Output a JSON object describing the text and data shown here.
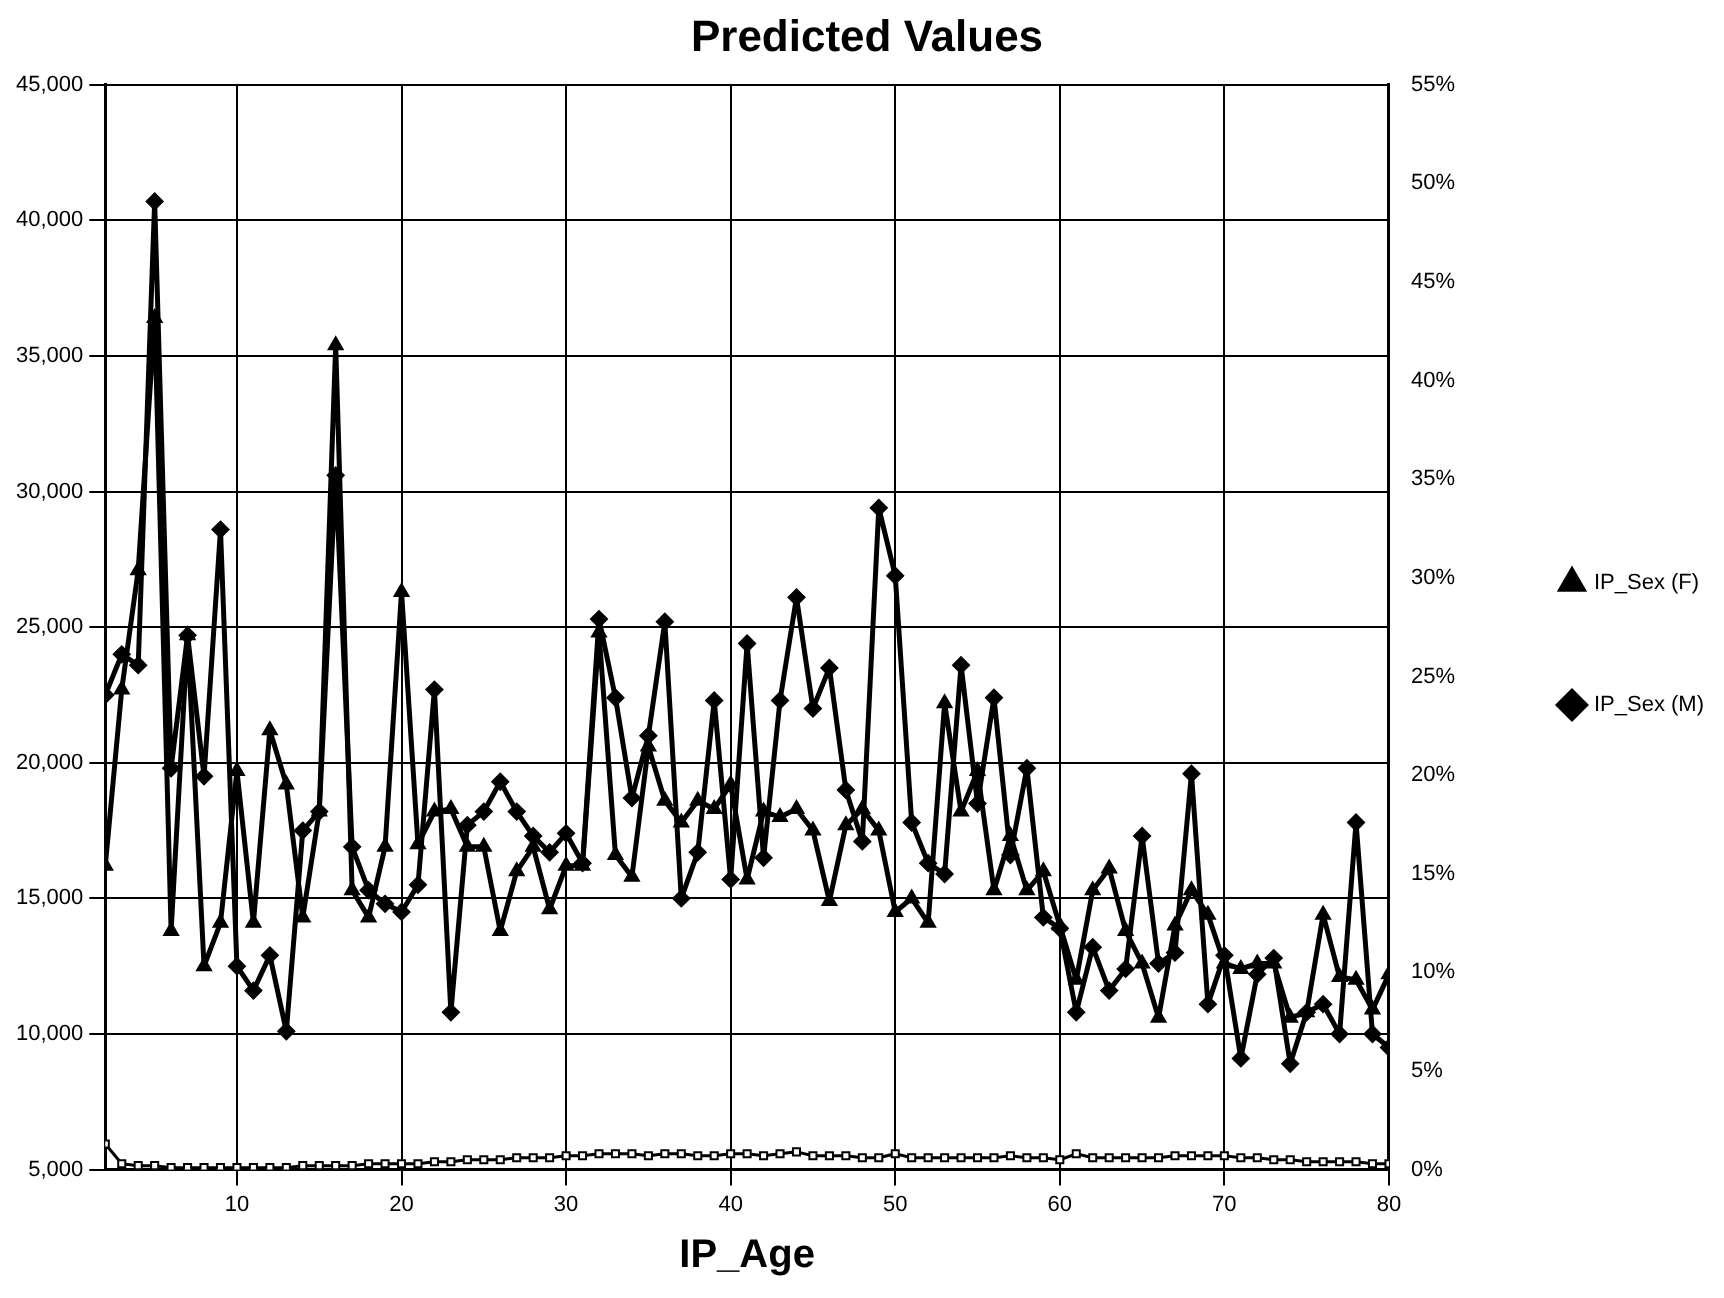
{
  "chart_data": {
    "type": "line",
    "title": "Predicted Values",
    "xlabel": "IP_Age",
    "x": [
      2,
      3,
      4,
      5,
      6,
      7,
      8,
      9,
      10,
      11,
      12,
      13,
      14,
      15,
      16,
      17,
      18,
      19,
      20,
      21,
      22,
      23,
      24,
      25,
      26,
      27,
      28,
      29,
      30,
      31,
      32,
      33,
      34,
      35,
      36,
      37,
      38,
      39,
      40,
      41,
      42,
      43,
      44,
      45,
      46,
      47,
      48,
      49,
      50,
      51,
      52,
      53,
      54,
      55,
      56,
      57,
      58,
      59,
      60,
      61,
      62,
      63,
      64,
      65,
      66,
      67,
      68,
      69,
      70,
      71,
      72,
      73,
      74,
      75,
      76,
      77,
      78,
      79,
      80
    ],
    "series": [
      {
        "name": "IP_Sex (F)",
        "color": "#000000",
        "marker": "triangle",
        "values": [
          16200,
          22700,
          27100,
          36400,
          13800,
          24700,
          12500,
          14100,
          19700,
          14100,
          21200,
          19200,
          14300,
          18200,
          35400,
          15300,
          14300,
          16900,
          26300,
          17000,
          18200,
          18300,
          16900,
          16900,
          13800,
          16000,
          16900,
          14600,
          16200,
          16200,
          24800,
          16600,
          15800,
          20600,
          18600,
          17800,
          18600,
          18300,
          19200,
          15700,
          18200,
          18000,
          18300,
          17500,
          14900,
          17700,
          18300,
          17500,
          14500,
          15000,
          14100,
          22200,
          18200,
          19700,
          15300,
          17300,
          15300,
          16000,
          14000,
          12000,
          15300,
          16100,
          13800,
          12600,
          10600,
          14000,
          15300,
          14400,
          12600,
          12400,
          12600,
          12600,
          10600,
          10800,
          14400,
          12100,
          12000,
          10900,
          12200
        ]
      },
      {
        "name": "IP_Sex (M)",
        "color": "#000000",
        "marker": "diamond",
        "values": [
          22500,
          24000,
          23600,
          40700,
          19800,
          24700,
          19500,
          28600,
          12500,
          11600,
          12900,
          10100,
          17500,
          18200,
          30600,
          16900,
          15300,
          14800,
          14500,
          15500,
          22700,
          10800,
          17700,
          18200,
          19300,
          18200,
          17300,
          16700,
          17400,
          16300,
          25300,
          22400,
          18700,
          21000,
          25200,
          15000,
          16700,
          22300,
          15700,
          24400,
          16500,
          22300,
          26100,
          22000,
          23500,
          19000,
          17100,
          29400,
          26900,
          17800,
          16300,
          15900,
          23600,
          18500,
          22400,
          16600,
          19800,
          14300,
          13900,
          10800,
          13200,
          11600,
          12400,
          17300,
          12600,
          13000,
          19600,
          11100,
          12900,
          9100,
          12200,
          12800,
          8900,
          10800,
          11100,
          10000,
          17800,
          10000,
          9500
        ]
      },
      {
        "color": "#000000",
        "marker": "square",
        "axis": "y2",
        "values": [
          1.3,
          0.3,
          0.2,
          0.2,
          0.1,
          0.1,
          0.1,
          0.1,
          0.1,
          0.1,
          0.1,
          0.1,
          0.2,
          0.2,
          0.2,
          0.2,
          0.3,
          0.3,
          0.3,
          0.3,
          0.4,
          0.4,
          0.5,
          0.5,
          0.5,
          0.6,
          0.6,
          0.6,
          0.7,
          0.7,
          0.8,
          0.8,
          0.8,
          0.7,
          0.8,
          0.8,
          0.7,
          0.7,
          0.8,
          0.8,
          0.7,
          0.8,
          0.9,
          0.7,
          0.7,
          0.7,
          0.6,
          0.6,
          0.8,
          0.6,
          0.6,
          0.6,
          0.6,
          0.6,
          0.6,
          0.7,
          0.6,
          0.6,
          0.5,
          0.8,
          0.6,
          0.6,
          0.6,
          0.6,
          0.6,
          0.7,
          0.7,
          0.7,
          0.7,
          0.6,
          0.6,
          0.5,
          0.5,
          0.4,
          0.4,
          0.4,
          0.4,
          0.3,
          0.3
        ]
      }
    ],
    "xlim": [
      2,
      80
    ],
    "xticks": [
      10,
      20,
      30,
      40,
      50,
      60,
      70,
      80
    ],
    "ylim": [
      5000,
      45000
    ],
    "yticks": [
      {
        "value": 5000,
        "label": "5,000"
      },
      {
        "value": 10000,
        "label": "10,000"
      },
      {
        "value": 15000,
        "label": "15,000"
      },
      {
        "value": 20000,
        "label": "20,000"
      },
      {
        "value": 25000,
        "label": "25,000"
      },
      {
        "value": 30000,
        "label": "30,000"
      },
      {
        "value": 35000,
        "label": "35,000"
      },
      {
        "value": 40000,
        "label": "40,000"
      },
      {
        "value": 45000,
        "label": "45,000"
      }
    ],
    "y2lim": [
      0,
      55
    ],
    "y2ticks": [
      {
        "value": 0,
        "label": "0%"
      },
      {
        "value": 5,
        "label": "5%"
      },
      {
        "value": 10,
        "label": "10%"
      },
      {
        "value": 15,
        "label": "15%"
      },
      {
        "value": 20,
        "label": "20%"
      },
      {
        "value": 25,
        "label": "25%"
      },
      {
        "value": 30,
        "label": "30%"
      },
      {
        "value": 35,
        "label": "35%"
      },
      {
        "value": 40,
        "label": "40%"
      },
      {
        "value": 45,
        "label": "45%"
      },
      {
        "value": 50,
        "label": "50%"
      },
      {
        "value": 55,
        "label": "55%"
      }
    ],
    "grid": true,
    "legend": "right",
    "line_style": "solid"
  }
}
